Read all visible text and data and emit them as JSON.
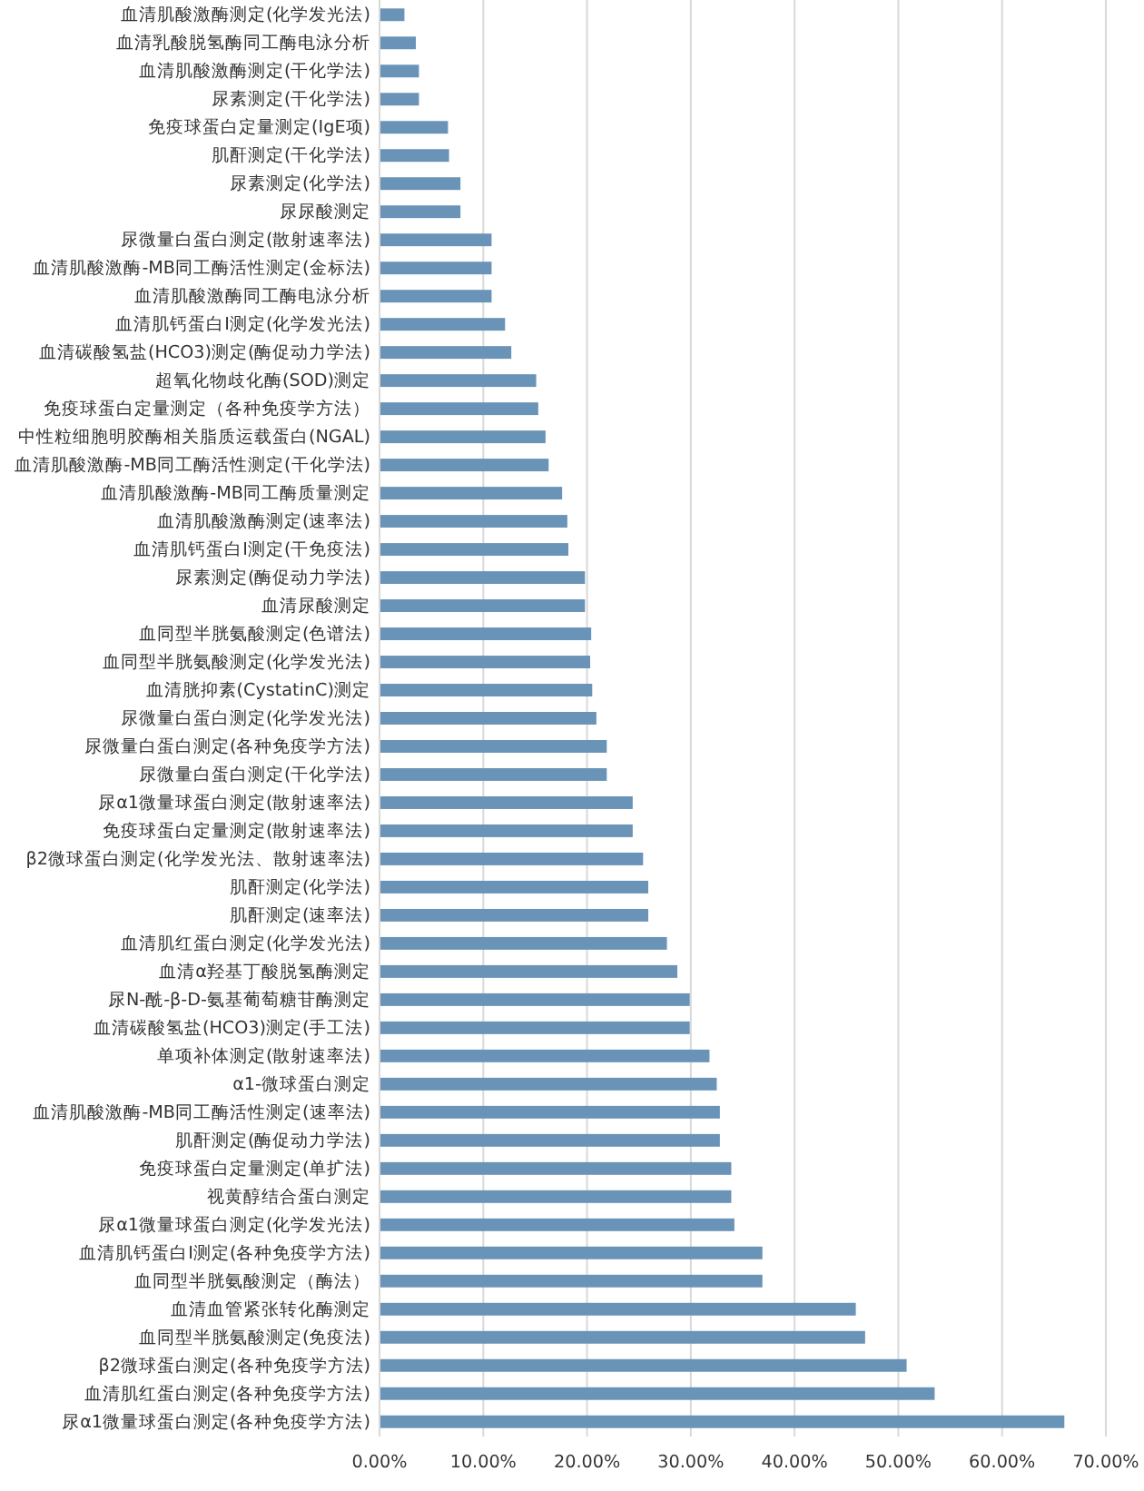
{
  "chart_data": {
    "type": "bar",
    "orientation": "horizontal",
    "color": "#6a93b8",
    "grid": "x",
    "xlim": [
      0,
      70
    ],
    "xticks": [
      {
        "value": 0,
        "label": "0.00%"
      },
      {
        "value": 10,
        "label": "10.00%"
      },
      {
        "value": 20,
        "label": "20.00%"
      },
      {
        "value": 30,
        "label": "30.00%"
      },
      {
        "value": 40,
        "label": "40.00%"
      },
      {
        "value": 50,
        "label": "50.00%"
      },
      {
        "value": 60,
        "label": "60.00%"
      },
      {
        "value": 70,
        "label": "70.00%"
      }
    ],
    "categories": [
      "血清肌酸激酶测定(化学发光法)",
      "血清乳酸脱氢酶同工酶电泳分析",
      "血清肌酸激酶测定(干化学法)",
      "尿素测定(干化学法)",
      "免疫球蛋白定量测定(IgE项)",
      "肌酐测定(干化学法)",
      "尿素测定(化学法)",
      "尿尿酸测定",
      "尿微量白蛋白测定(散射速率法)",
      "血清肌酸激酶-MB同工酶活性测定(金标法)",
      "血清肌酸激酶同工酶电泳分析",
      "血清肌钙蛋白Ⅰ测定(化学发光法)",
      "血清碳酸氢盐(HCO3)测定(酶促动力学法)",
      "超氧化物歧化酶(SOD)测定",
      "免疫球蛋白定量测定（各种免疫学方法）",
      "中性粒细胞明胶酶相关脂质运载蛋白(NGAL)",
      "血清肌酸激酶-MB同工酶活性测定(干化学法)",
      "血清肌酸激酶-MB同工酶质量测定",
      "血清肌酸激酶测定(速率法)",
      "血清肌钙蛋白Ⅰ测定(干免疫法)",
      "尿素测定(酶促动力学法)",
      "血清尿酸测定",
      "血同型半胱氨酸测定(色谱法)",
      "血同型半胱氨酸测定(化学发光法)",
      "血清胱抑素(CystatinC)测定",
      "尿微量白蛋白测定(化学发光法)",
      "尿微量白蛋白测定(各种免疫学方法)",
      "尿微量白蛋白测定(干化学法)",
      "尿α1微量球蛋白测定(散射速率法)",
      "免疫球蛋白定量测定(散射速率法)",
      "β2微球蛋白测定(化学发光法、散射速率法)",
      "肌酐测定(化学法)",
      "肌酐测定(速率法)",
      "血清肌红蛋白测定(化学发光法)",
      "血清α羟基丁酸脱氢酶测定",
      "尿N-酰-β-D-氨基葡萄糖苷酶测定",
      "血清碳酸氢盐(HCO3)测定(手工法)",
      "单项补体测定(散射速率法)",
      "α1-微球蛋白测定",
      "血清肌酸激酶-MB同工酶活性测定(速率法)",
      "肌酐测定(酶促动力学法)",
      "免疫球蛋白定量测定(单扩法)",
      "视黄醇结合蛋白测定",
      "尿α1微量球蛋白测定(化学发光法)",
      "血清肌钙蛋白Ⅰ测定(各种免疫学方法)",
      "血同型半胱氨酸测定（酶法）",
      "血清血管紧张转化酶测定",
      "血同型半胱氨酸测定(免疫法)",
      "β2微球蛋白测定(各种免疫学方法)",
      "血清肌红蛋白测定(各种免疫学方法)",
      "尿α1微量球蛋白测定(各种免疫学方法)"
    ],
    "values": [
      2.4,
      3.5,
      3.8,
      3.8,
      6.6,
      6.7,
      7.8,
      7.8,
      10.8,
      10.8,
      10.8,
      12.1,
      12.7,
      15.1,
      15.3,
      16.0,
      16.3,
      17.6,
      18.1,
      18.2,
      19.8,
      19.8,
      20.4,
      20.3,
      20.5,
      20.9,
      21.9,
      21.9,
      24.4,
      24.4,
      25.4,
      25.9,
      25.9,
      27.7,
      28.7,
      29.9,
      29.9,
      31.8,
      32.5,
      32.8,
      32.8,
      33.9,
      33.9,
      34.2,
      36.9,
      36.9,
      45.9,
      46.8,
      50.8,
      53.5,
      66.0
    ]
  }
}
